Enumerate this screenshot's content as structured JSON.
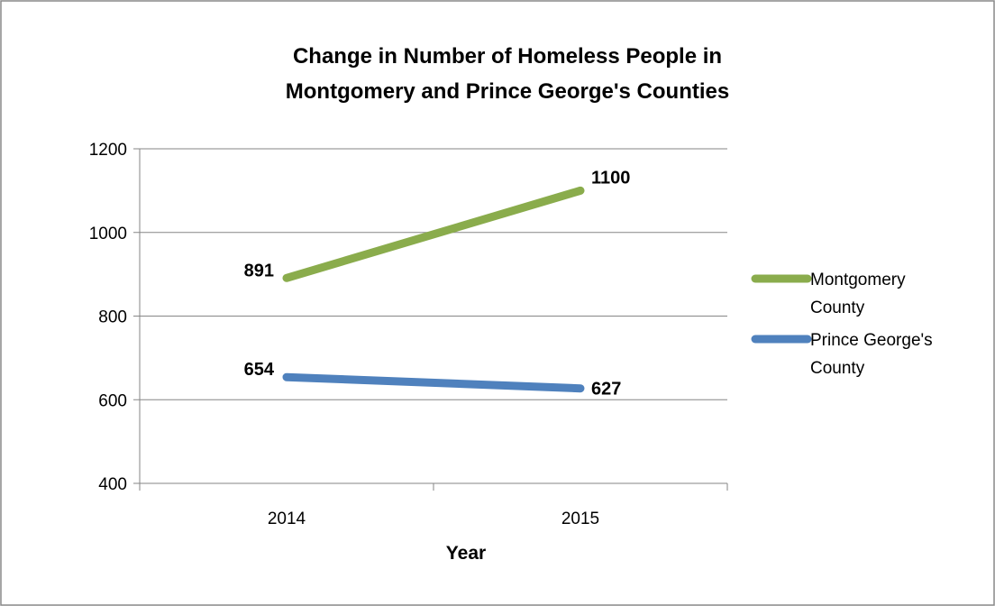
{
  "chart_data": {
    "type": "line",
    "title_lines": [
      "Change in Number of Homeless People in",
      "Montgomery and Prince George's Counties"
    ],
    "xlabel": "Year",
    "ylabel": "",
    "categories": [
      "2014",
      "2015"
    ],
    "ylim": [
      400,
      1200
    ],
    "yticks": [
      400,
      600,
      800,
      1000,
      1200
    ],
    "grid": true,
    "legend_position": "right",
    "series": [
      {
        "name_lines": [
          "Montgomery",
          "County"
        ],
        "values": [
          891,
          1100
        ],
        "labels": [
          "891",
          "1100"
        ],
        "color": "#8aac4c"
      },
      {
        "name_lines": [
          "Prince George's",
          "County"
        ],
        "values": [
          654,
          627
        ],
        "labels": [
          "654",
          "627"
        ],
        "color": "#4f81bd"
      }
    ]
  }
}
